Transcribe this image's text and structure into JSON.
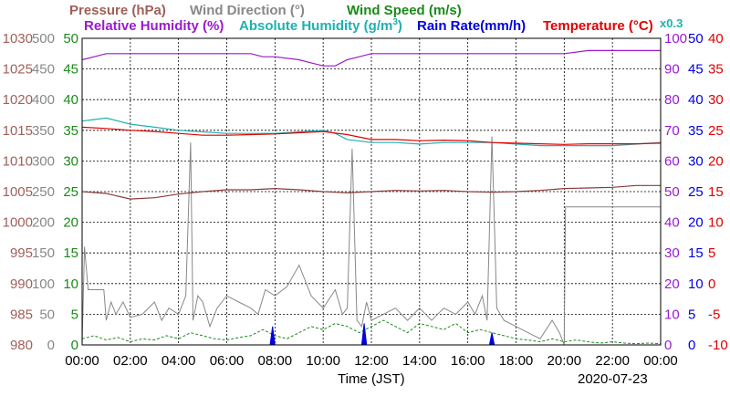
{
  "chart_data": {
    "type": "line",
    "header": {
      "pressure": "Pressure (hPa)",
      "wind_direction": "Wind Direction (°)",
      "wind_speed": "Wind Speed (m/s)",
      "relative_humidity": "Relative Humidity (%)",
      "absolute_humidity": "Absolute Humidity (g/m",
      "absolute_humidity_exp": "3",
      "absolute_humidity_close": ")",
      "rain_rate": "Rain Rate(mm/h)",
      "temperature": "Temperature (°C)",
      "scale_note": "x0.3"
    },
    "xlabel": "Time (JST)",
    "date_label": "2020-07-23",
    "x_ticks": [
      "00:00",
      "02:00",
      "04:00",
      "06:00",
      "08:00",
      "10:00",
      "12:00",
      "14:00",
      "16:00",
      "18:00",
      "20:00",
      "22:00",
      "00:00"
    ],
    "x_range_hours": [
      0,
      24
    ],
    "axes": {
      "pressure": {
        "range": [
          980,
          1030
        ],
        "ticks": [
          "1030",
          "1025",
          "1020",
          "1015",
          "1010",
          "1005",
          "1000",
          "995",
          "990",
          "985",
          "980"
        ],
        "color": "#a0605a"
      },
      "wind_direction": {
        "range": [
          0,
          500
        ],
        "ticks": [
          "500",
          "450",
          "400",
          "350",
          "300",
          "250",
          "200",
          "150",
          "100",
          "50",
          "0"
        ],
        "color": "#888888"
      },
      "wind_speed": {
        "range": [
          0,
          50
        ],
        "ticks": [
          "50",
          "45",
          "40",
          "35",
          "30",
          "25",
          "20",
          "15",
          "10",
          "5",
          "0"
        ],
        "color": "#1a8a1a"
      },
      "relative_humidity": {
        "range": [
          0,
          100
        ],
        "ticks": [
          "100",
          "90",
          "80",
          "70",
          "60",
          "50",
          "40",
          "30",
          "20",
          "10",
          "0"
        ],
        "color": "#9a1ad0"
      },
      "rain_rate": {
        "range": [
          0,
          50
        ],
        "ticks": [
          "50",
          "45",
          "40",
          "35",
          "30",
          "25",
          "20",
          "15",
          "10",
          "5",
          "0"
        ],
        "color": "#0000e0"
      },
      "temperature": {
        "range": [
          -10,
          40
        ],
        "ticks": [
          "40",
          "35",
          "30",
          "25",
          "20",
          "15",
          "10",
          "5",
          "0",
          "-5",
          "-10"
        ],
        "color": "#e00000"
      }
    },
    "colors": {
      "pressure": "#8b3a3a",
      "wind_direction": "#888888",
      "wind_speed": "#1a8a1a",
      "relative_humidity": "#9a1ad0",
      "absolute_humidity": "#20b0b0",
      "rain_rate": "#0000e0",
      "temperature": "#e00000"
    },
    "grid": true,
    "series": [
      {
        "key": "relative_humidity",
        "unit": "%",
        "x": [
          0,
          0.5,
          1.0,
          2,
          3,
          4,
          5,
          6,
          7,
          7.5,
          8,
          9,
          9.5,
          10,
          10.5,
          11,
          12,
          13,
          14,
          15,
          16,
          17,
          18,
          19,
          20,
          21,
          22,
          23,
          24
        ],
        "y": [
          93,
          94,
          95,
          95,
          95,
          95,
          95,
          95,
          95,
          94,
          94,
          93,
          92,
          91,
          91,
          93,
          95,
          95,
          95,
          95,
          95,
          95,
          95,
          95,
          95,
          96,
          96,
          96,
          96
        ]
      },
      {
        "key": "absolute_humidity",
        "unit": "g/m3 x0.3",
        "x": [
          0,
          0.5,
          1,
          1.5,
          2,
          3,
          4,
          5,
          6,
          7,
          8,
          9,
          10,
          10.5,
          11,
          12,
          13,
          14,
          15,
          16,
          17,
          18,
          19,
          20,
          21,
          22,
          23,
          24
        ],
        "y": [
          73,
          73.5,
          74,
          73,
          72,
          71,
          70,
          69.5,
          69,
          69,
          69,
          69.5,
          70,
          69,
          67,
          66,
          66,
          65.5,
          66,
          66,
          66,
          65.5,
          65,
          65,
          65,
          65,
          65.5,
          66
        ]
      },
      {
        "key": "temperature",
        "unit": "°C",
        "x": [
          0,
          1,
          2,
          3,
          4,
          5,
          6,
          7,
          8,
          9,
          10,
          11,
          12,
          13,
          14,
          15,
          16,
          17,
          18,
          19,
          20,
          21,
          22,
          23,
          24
        ],
        "y": [
          25.5,
          25.3,
          25.0,
          24.8,
          24.5,
          24.2,
          24.2,
          24.3,
          24.4,
          24.6,
          24.8,
          24.3,
          23.5,
          23.5,
          23.3,
          23.4,
          23.3,
          23.0,
          22.9,
          22.8,
          22.7,
          22.8,
          22.8,
          22.8,
          22.9
        ]
      },
      {
        "key": "pressure",
        "unit": "hPa",
        "x": [
          0,
          1,
          2,
          3,
          4,
          5,
          6,
          7,
          8,
          9,
          10,
          11,
          12,
          13,
          14,
          15,
          16,
          17,
          18,
          19,
          20,
          21,
          22,
          23,
          24
        ],
        "y": [
          1005.0,
          1004.7,
          1003.8,
          1004.0,
          1004.6,
          1005.0,
          1005.3,
          1005.3,
          1005.5,
          1005.3,
          1005.0,
          1004.8,
          1005.0,
          1005.2,
          1005.1,
          1005.2,
          1005.0,
          1004.9,
          1005.0,
          1005.2,
          1005.5,
          1005.6,
          1005.7,
          1006.0,
          1006.0
        ]
      },
      {
        "key": "wind_direction",
        "unit": "°",
        "x": [
          0,
          0.1,
          0.25,
          0.9,
          1.0,
          1.2,
          1.4,
          1.7,
          2.0,
          2.5,
          3.0,
          3.3,
          3.6,
          4.0,
          4.3,
          4.5,
          4.6,
          4.7,
          4.8,
          5.0,
          5.3,
          5.6,
          6.0,
          6.5,
          7.0,
          7.3,
          7.6,
          8.0,
          8.5,
          9.0,
          9.5,
          10.0,
          10.5,
          10.8,
          11.0,
          11.2,
          11.4,
          11.6,
          11.8,
          12.0,
          12.5,
          13.0,
          13.5,
          14.0,
          14.5,
          15.0,
          15.5,
          16.0,
          16.3,
          16.6,
          16.8,
          17.0,
          17.2,
          17.5,
          18.0,
          18.5,
          19.0,
          19.5,
          19.8,
          20.0,
          20.05,
          20.1,
          20.5,
          21.0,
          22.0,
          23.0,
          24.0
        ],
        "y": [
          0,
          160,
          90,
          90,
          40,
          70,
          50,
          70,
          45,
          50,
          70,
          40,
          60,
          50,
          80,
          330,
          40,
          60,
          80,
          70,
          30,
          60,
          80,
          70,
          60,
          50,
          90,
          80,
          95,
          130,
          80,
          60,
          90,
          50,
          60,
          320,
          40,
          30,
          70,
          40,
          50,
          60,
          40,
          60,
          40,
          60,
          50,
          70,
          50,
          80,
          40,
          340,
          60,
          40,
          30,
          20,
          10,
          40,
          20,
          0,
          225,
          225,
          225,
          225,
          225,
          225,
          225
        ]
      },
      {
        "key": "wind_speed",
        "unit": "m/s",
        "x": [
          0,
          0.5,
          1,
          1.5,
          2,
          2.5,
          3,
          3.5,
          4,
          4.5,
          5,
          5.5,
          6,
          6.5,
          7,
          7.5,
          8,
          8.5,
          9,
          9.5,
          10,
          10.5,
          11,
          11.5,
          12,
          12.5,
          13,
          13.5,
          14,
          14.5,
          15,
          15.5,
          16,
          16.5,
          17,
          17.5,
          18,
          18.5,
          19,
          19.5,
          20,
          20.5,
          21,
          21.5,
          22,
          22.5,
          23,
          23.5,
          24
        ],
        "y": [
          1.0,
          1.5,
          0.8,
          1.2,
          0.5,
          1.0,
          0.8,
          1.5,
          1.0,
          2.0,
          1.5,
          1.0,
          0.8,
          1.2,
          1.5,
          2.5,
          1.5,
          1.0,
          2.0,
          3.0,
          2.5,
          3.5,
          3.0,
          2.0,
          3.0,
          4.0,
          3.0,
          2.0,
          3.5,
          3.0,
          2.5,
          3.5,
          2.0,
          2.5,
          2.0,
          1.5,
          1.0,
          0.8,
          0.5,
          1.0,
          0.5,
          0.8,
          0.5,
          0.3,
          0.5,
          0.3,
          0.2,
          0.3,
          0.2
        ]
      },
      {
        "key": "rain_rate",
        "unit": "mm/h",
        "x": [
          7.8,
          7.9,
          8.0,
          11.6,
          11.7,
          11.8,
          16.9,
          17.0,
          17.1
        ],
        "y": [
          0,
          3,
          0,
          0,
          3.5,
          0,
          0,
          2,
          0
        ]
      }
    ]
  }
}
